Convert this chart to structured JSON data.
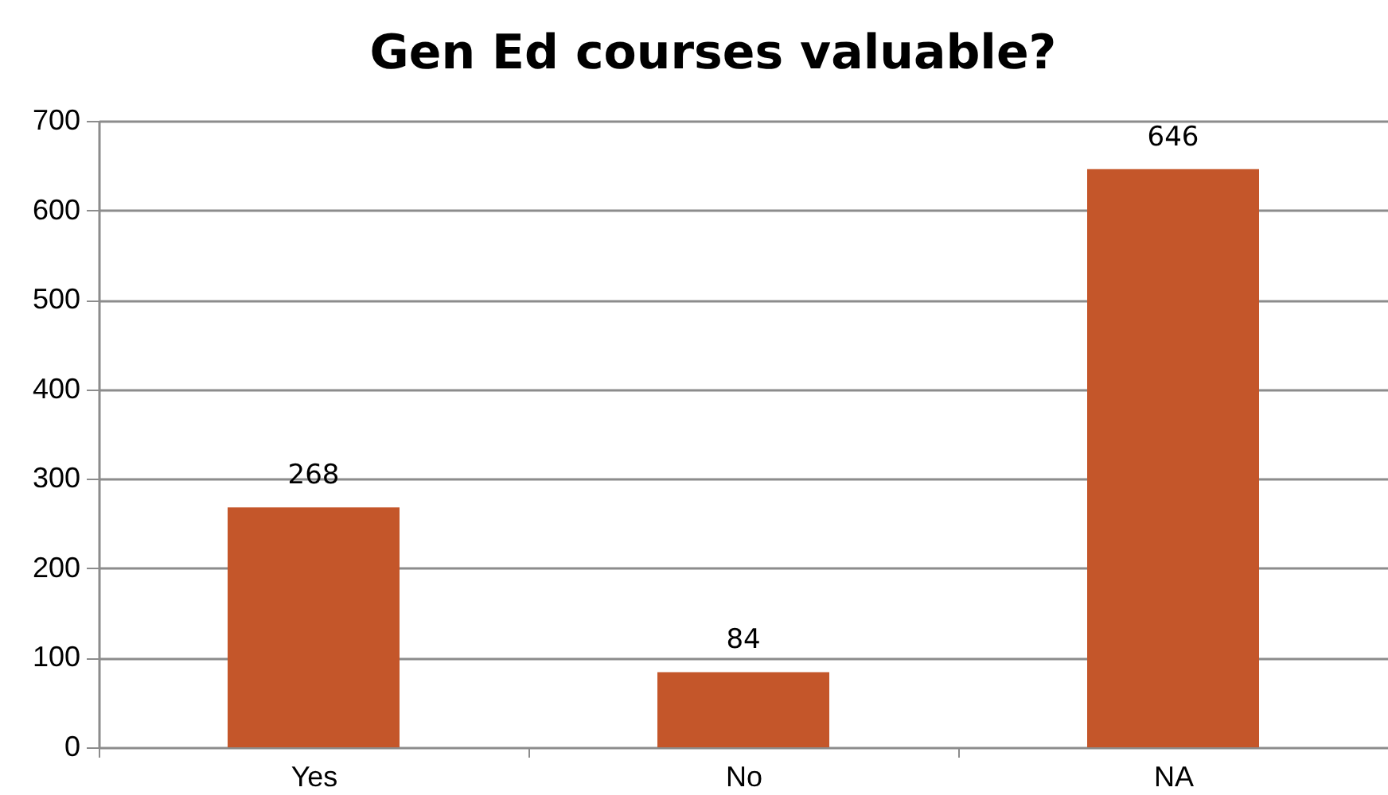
{
  "chart_data": {
    "type": "bar",
    "title": "Gen Ed courses valuable?",
    "categories": [
      "Yes",
      "No",
      "NA"
    ],
    "values": [
      268,
      84,
      646
    ],
    "color": "#c4562a",
    "ylim": [
      0,
      700
    ],
    "yticks": [
      0,
      100,
      200,
      300,
      400,
      500,
      600,
      700
    ],
    "grid": "y",
    "data_labels": true
  }
}
